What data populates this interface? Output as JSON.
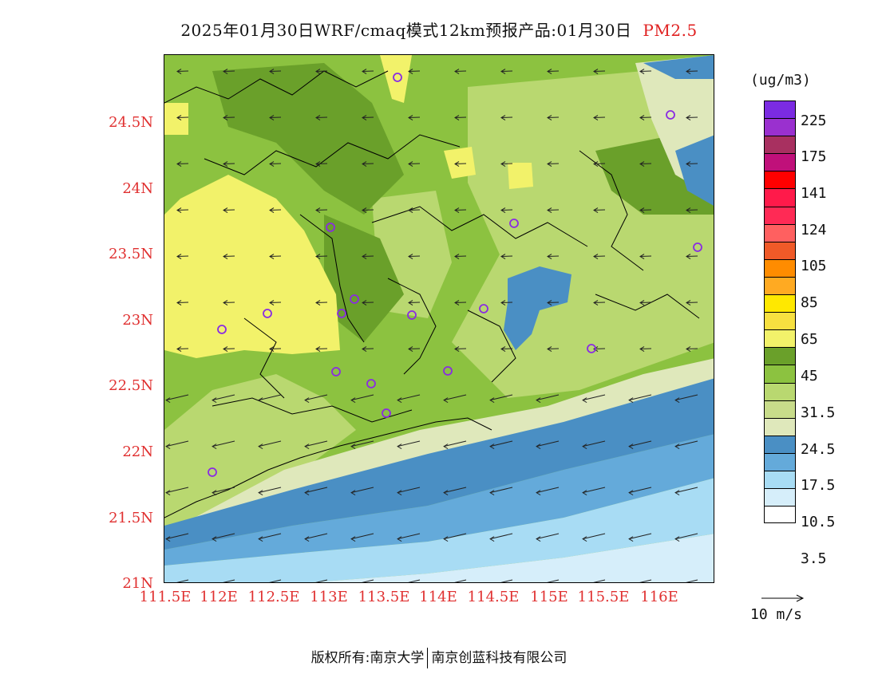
{
  "title": {
    "text": "2025年01月30日WRF/cmaq模式12km预报产品:01月30日",
    "pollutant": "PM2.5",
    "pollutant_color": "#e02020"
  },
  "map": {
    "lat_ticks": [
      "24.5N",
      "24N",
      "23.5N",
      "23N",
      "22.5N",
      "22N",
      "21.5N",
      "21N"
    ],
    "lon_ticks": [
      "111.5E",
      "112E",
      "112.5E",
      "113E",
      "113.5E",
      "114E",
      "114.5E",
      "115E",
      "115.5E",
      "116E"
    ],
    "tick_color": "#e03030",
    "station_marker_color": "#8a2be2"
  },
  "colorbar": {
    "unit": "(ug/m3)",
    "colors": [
      "#7b2be2",
      "#9a30cf",
      "#a83060",
      "#c0107a",
      "#ff0000",
      "#ff1a4a",
      "#ff2a55",
      "#ff6060",
      "#f05a28",
      "#ff8c00",
      "#ffaa22",
      "#ffe800",
      "#f7e040",
      "#f2f26a",
      "#6aa02a",
      "#8cc240",
      "#b9d870",
      "#c8dc8a",
      "#dfe8bb",
      "#4a8fc4",
      "#64aada",
      "#a8dcf4",
      "#d6eefa",
      "#ffffff"
    ],
    "labels": [
      "225",
      "175",
      "141",
      "124",
      "105",
      "85",
      "65",
      "45",
      "31.5",
      "24.5",
      "17.5",
      "10.5",
      "3.5"
    ]
  },
  "wind_reference": {
    "label": "10 m/s"
  },
  "footer": {
    "left": "版权所有:南京大学",
    "right": "南京创蓝科技有限公司"
  }
}
